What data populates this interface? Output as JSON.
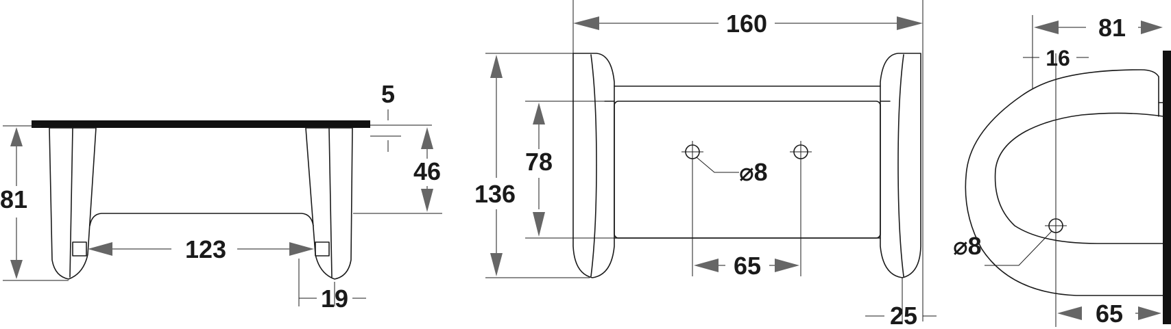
{
  "dimensions": {
    "side_thickness": "5",
    "side_height_total": "81",
    "side_height_inner": "46",
    "side_span": "123",
    "side_foot": "19",
    "front_width": "160",
    "front_height": "136",
    "front_inner_height": "78",
    "front_hole_spacing": "65",
    "front_hole_dia": "⌀8",
    "front_end_width": "25",
    "profile_depth": "81",
    "profile_hole_offset": "16",
    "profile_hole_dia": "⌀8",
    "profile_bottom": "65"
  }
}
